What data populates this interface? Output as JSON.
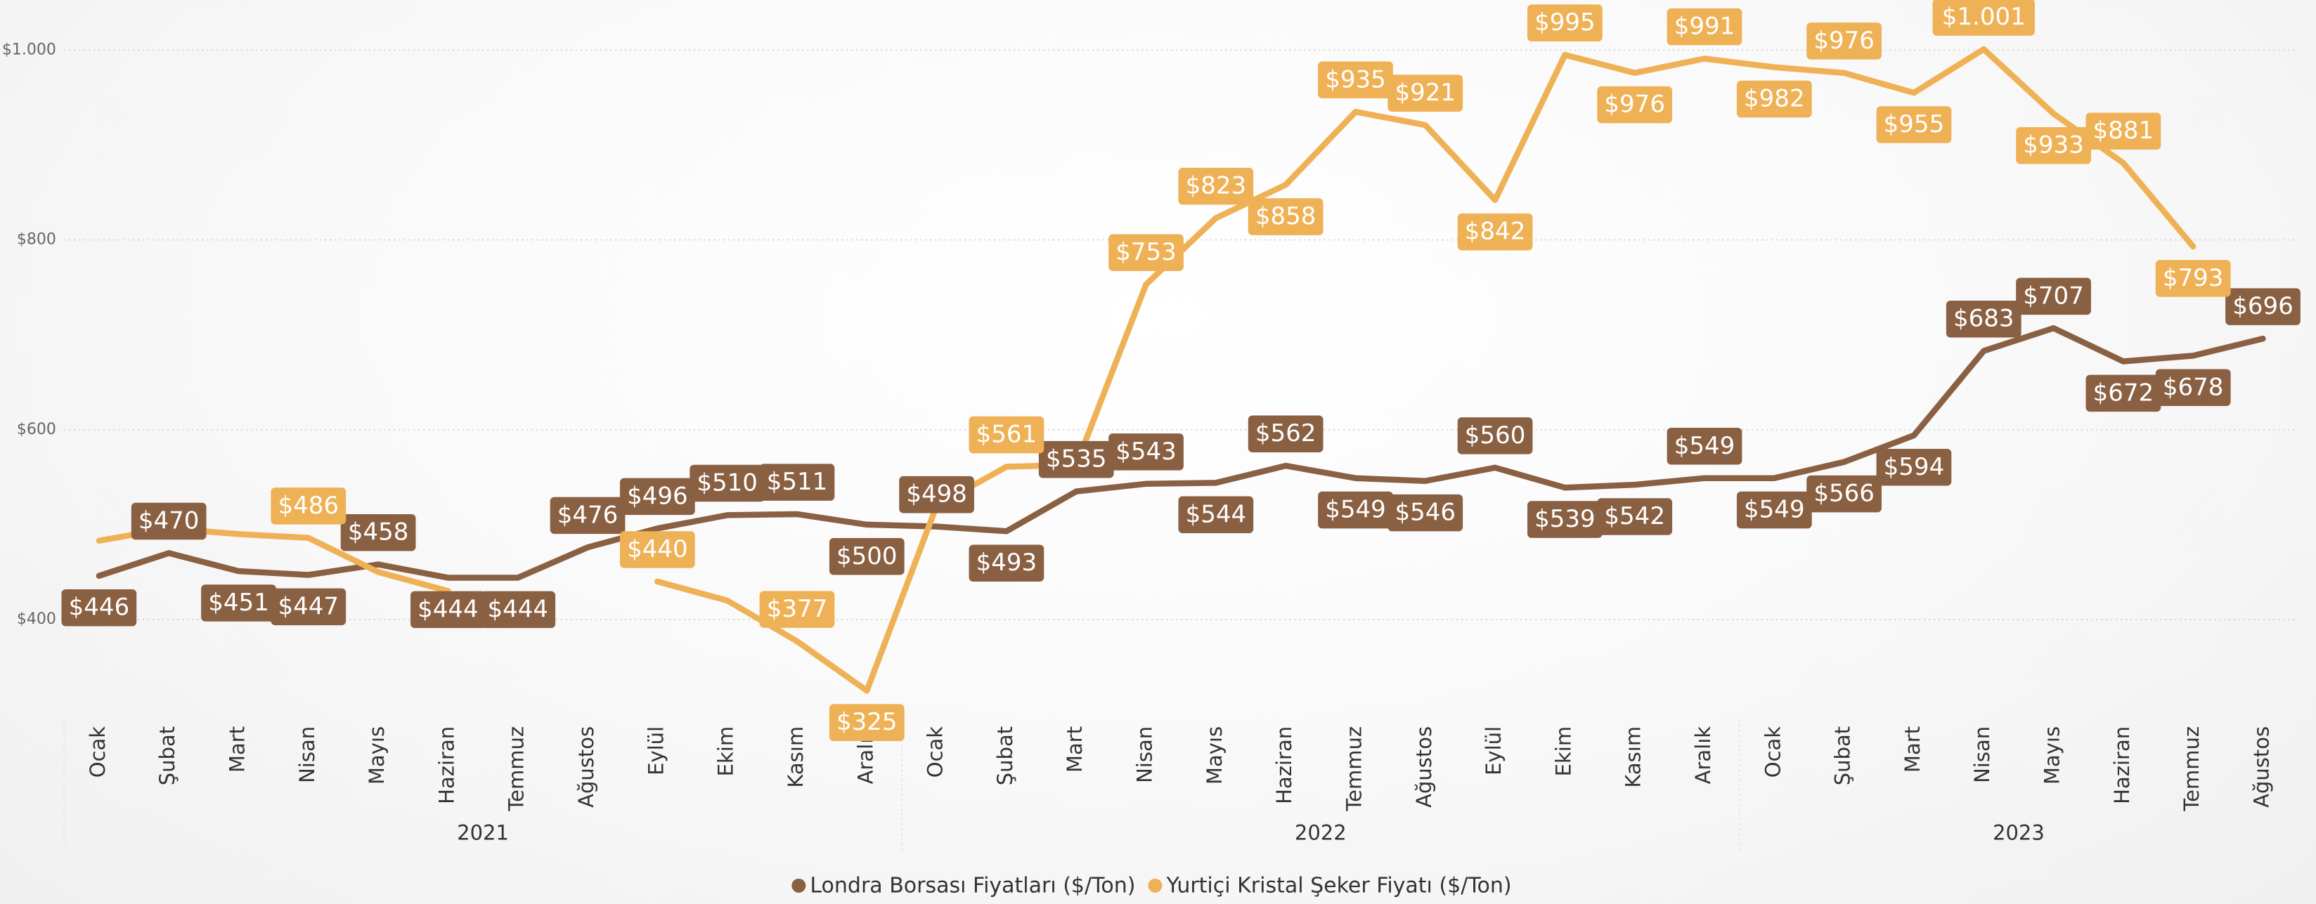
{
  "chart_data": {
    "type": "line",
    "category_groups": [
      {
        "name": "2021",
        "categories": [
          "Ocak",
          "Şubat",
          "Mart",
          "Nisan",
          "Mayıs",
          "Haziran",
          "Temmuz",
          "Ağustos",
          "Eylül",
          "Ekim",
          "Kasım",
          "Aralık"
        ]
      },
      {
        "name": "2022",
        "categories": [
          "Ocak",
          "Şubat",
          "Mart",
          "Nisan",
          "Mayıs",
          "Haziran",
          "Temmuz",
          "Ağustos",
          "Eylül",
          "Ekim",
          "Kasım",
          "Aralık"
        ]
      },
      {
        "name": "2023",
        "categories": [
          "Ocak",
          "Şubat",
          "Mart",
          "Nisan",
          "Mayıs",
          "Haziran",
          "Temmuz",
          "Ağustos"
        ]
      }
    ],
    "series": [
      {
        "name": "Londra Borsası Fiyatları ($/Ton)",
        "color": "#8a6043",
        "values": [
          446,
          470,
          451,
          447,
          458,
          444,
          444,
          476,
          496,
          510,
          511,
          500,
          498,
          493,
          535,
          543,
          544,
          562,
          549,
          546,
          560,
          539,
          542,
          549,
          549,
          566,
          594,
          683,
          707,
          672,
          678,
          696
        ],
        "value_labels": [
          "$446",
          "$470",
          "$451",
          "$447",
          "$458",
          "$444",
          "$444",
          "$476",
          "$496",
          "$510",
          "$511",
          "$500",
          "$498",
          "$493",
          "$535",
          "$543",
          "$544",
          "$562",
          "$549",
          "$546",
          "$560",
          "$539",
          "$542",
          "$549",
          "$549",
          "$566",
          "$594",
          "$683",
          "$707",
          "$672",
          "$678",
          "$696"
        ]
      },
      {
        "name": "Yurtiçi Kristal Şeker Fiyatı ($/Ton)",
        "color": "#efb155",
        "values": [
          483,
          496,
          490,
          486,
          450,
          430,
          null,
          null,
          440,
          420,
          377,
          325,
          520,
          561,
          563,
          753,
          823,
          858,
          935,
          921,
          842,
          995,
          976,
          991,
          982,
          976,
          955,
          1001,
          933,
          881,
          793,
          null
        ],
        "value_labels": [
          null,
          null,
          null,
          "$486",
          null,
          null,
          null,
          null,
          "$440",
          null,
          "$377",
          "$325",
          null,
          "$561",
          null,
          "$753",
          "$823",
          "$858",
          "$935",
          "$921",
          "$842",
          "$995",
          "$976",
          "$991",
          "$982",
          "$976",
          "$955",
          "$1.001",
          "$933",
          "$881",
          "$793",
          null
        ]
      }
    ],
    "ylim": [
      300,
      1050
    ],
    "yticks": [
      {
        "value": 400,
        "label": "$400"
      },
      {
        "value": 600,
        "label": "$600"
      },
      {
        "value": 800,
        "label": "$800"
      },
      {
        "value": 1000,
        "label": "$1.000"
      }
    ],
    "grid": true,
    "legend": "bottom"
  }
}
